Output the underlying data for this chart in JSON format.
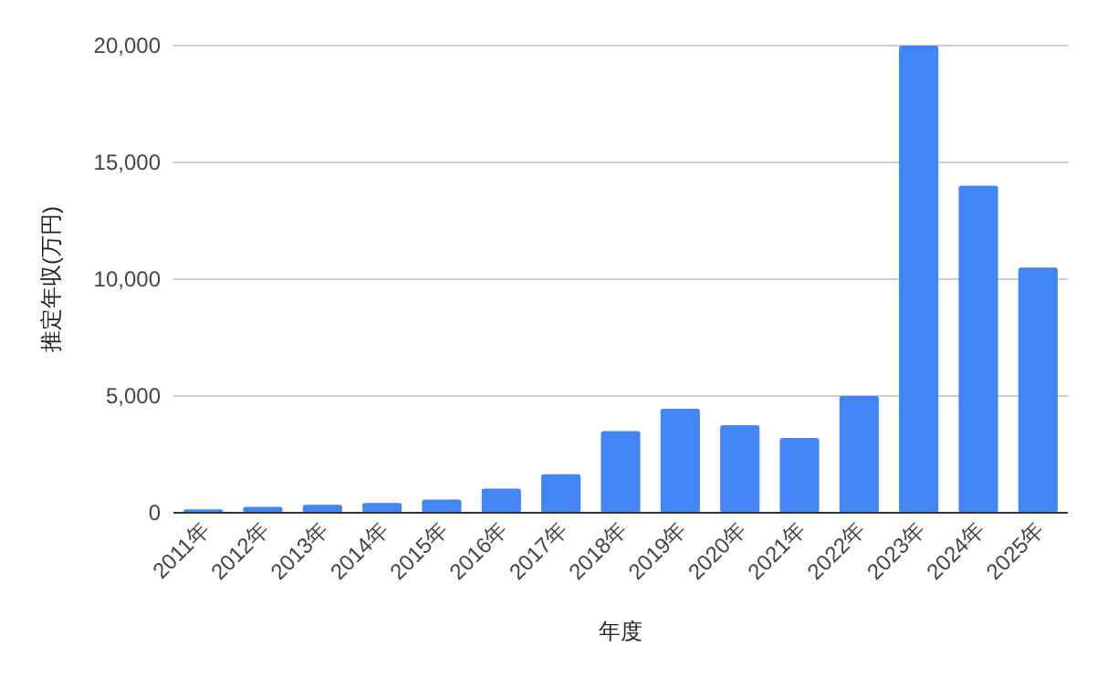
{
  "chart_data": {
    "type": "bar",
    "xlabel": "年度",
    "ylabel": "推定年収(万円)",
    "categories": [
      "2011年",
      "2012年",
      "2013年",
      "2014年",
      "2015年",
      "2016年",
      "2017年",
      "2018年",
      "2019年",
      "2020年",
      "2021年",
      "2022年",
      "2023年",
      "2024年",
      "2025年"
    ],
    "values": [
      150,
      250,
      340,
      420,
      570,
      1040,
      1650,
      3500,
      4450,
      3750,
      3200,
      5000,
      20000,
      14000,
      10500
    ],
    "color": "#4285f4",
    "ylim": [
      0,
      20000
    ],
    "yticks": [
      {
        "value": 0,
        "label": "0"
      },
      {
        "value": 5000,
        "label": "5,000"
      },
      {
        "value": 10000,
        "label": "10,000"
      },
      {
        "value": 15000,
        "label": "15,000"
      },
      {
        "value": 20000,
        "label": "20,000"
      }
    ],
    "grid": "y"
  }
}
